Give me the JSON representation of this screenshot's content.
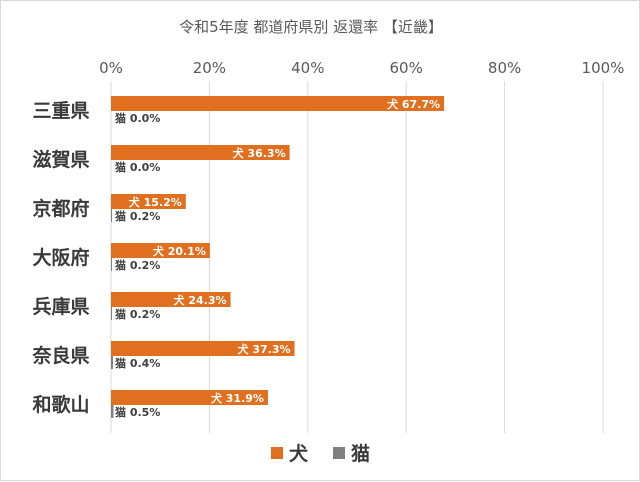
{
  "chart_data": {
    "type": "bar",
    "orientation": "horizontal",
    "title": "令和5年度 都道府県別 返還率 【近畿】",
    "xlim": [
      0,
      100
    ],
    "x_ticks": [
      "0%",
      "20%",
      "40%",
      "60%",
      "80%",
      "100%"
    ],
    "x_axis_position": "top",
    "grid": true,
    "legend_position": "bottom",
    "categories": [
      "三重県",
      "滋賀県",
      "京都府",
      "大阪府",
      "兵庫県",
      "奈良県",
      "和歌山"
    ],
    "series": [
      {
        "name": "犬",
        "color": "#E07020",
        "values": [
          67.7,
          36.3,
          15.2,
          20.1,
          24.3,
          37.3,
          31.9
        ],
        "labels": [
          "犬 67.7%",
          "犬 36.3%",
          "犬 15.2%",
          "犬 20.1%",
          "犬 24.3%",
          "犬 37.3%",
          "犬 31.9%"
        ]
      },
      {
        "name": "猫",
        "color": "#808080",
        "values": [
          0.0,
          0.0,
          0.2,
          0.2,
          0.2,
          0.4,
          0.5
        ],
        "labels": [
          "猫 0.0%",
          "猫 0.0%",
          "猫 0.2%",
          "猫 0.2%",
          "猫 0.2%",
          "猫 0.4%",
          "猫 0.5%"
        ]
      }
    ]
  }
}
